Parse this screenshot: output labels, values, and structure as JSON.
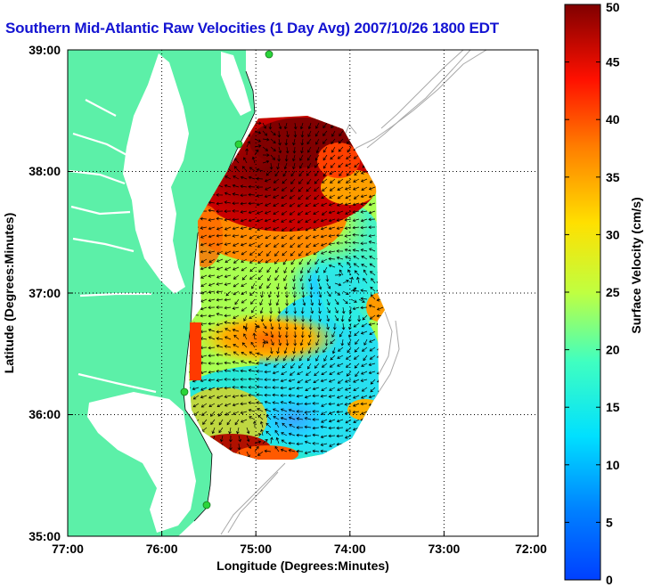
{
  "title": "Southern Mid-Atlantic Raw Velocities (1 Day Avg) 2007/10/26 1800 EDT",
  "map": {
    "xlabel": "Longitude (Degrees:Minutes)",
    "ylabel": "Latitude (Degrees:Minutes)",
    "x_ticks": [
      "77:00",
      "76:00",
      "75:00",
      "74:00",
      "73:00",
      "72:00"
    ],
    "y_ticks": [
      "39:00",
      "38:00",
      "37:00",
      "36:00",
      "35:00"
    ],
    "xlim": [
      -77,
      -72
    ],
    "ylim": [
      35,
      39
    ],
    "grid": "dotted",
    "land_color": "#5cf0a8",
    "water_color": "#ffffff",
    "isobath_color": "#a8a8a8",
    "station_color": "#2bd43a"
  },
  "colorbar": {
    "label": "Surface Velocity (cm/s)",
    "min": 0,
    "max": 50,
    "ticks": [
      "0",
      "5",
      "10",
      "15",
      "20",
      "25",
      "30",
      "35",
      "40",
      "45",
      "50"
    ],
    "colormap": "jet"
  }
}
